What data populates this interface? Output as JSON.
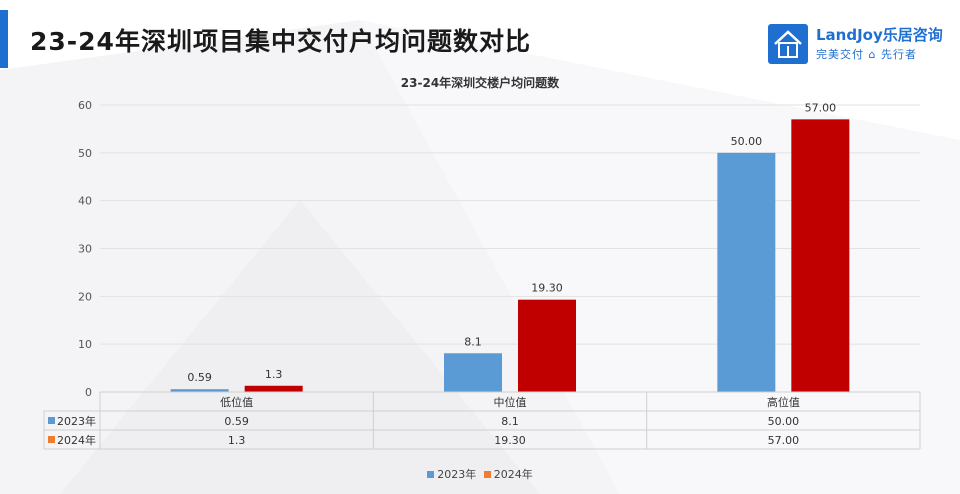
{
  "header": {
    "title": "23-24年深圳项目集中交付户均问题数对比"
  },
  "logo": {
    "brand": "LandJoy乐居咨询",
    "slogan": "完美交付",
    "slogan2": "先行者",
    "mark_icon": "house-icon",
    "accent": "#1f6fd1"
  },
  "chart_data": {
    "type": "bar",
    "title": "23-24年深圳交楼户均问题数",
    "categories": [
      "低位值",
      "中位值",
      "高位值"
    ],
    "ylim": [
      0,
      60
    ],
    "yticks": [
      "0",
      "10",
      "20",
      "30",
      "40",
      "50",
      "60"
    ],
    "grid": true,
    "legend": "bottom",
    "series": [
      {
        "name": "2023年",
        "values": [
          0.59,
          8.1,
          50.0
        ],
        "labels": [
          "0.59",
          "8.1",
          "50.00"
        ],
        "color": "#5b9bd5",
        "legend_color": "#5b9bd5"
      },
      {
        "name": "2024年",
        "values": [
          1.3,
          19.3,
          57.0
        ],
        "labels": [
          "1.3",
          "19.30",
          "57.00"
        ],
        "color": "#c00000",
        "legend_color": "#ed7d31"
      }
    ]
  }
}
